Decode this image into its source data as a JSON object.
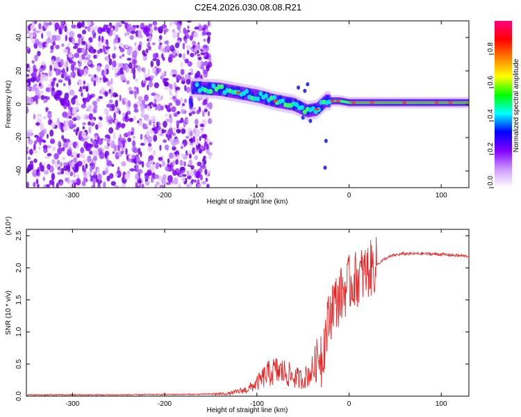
{
  "title": "C2E4.2026.030.08.08.R21",
  "chart_data": [
    {
      "type": "heatmap",
      "name": "spectrogram",
      "xlabel": "Height of straight line (km)",
      "ylabel": "Frequency (Hz)",
      "xlim": [
        -350,
        130
      ],
      "ylim": [
        -50,
        50
      ],
      "xticks": [
        -300,
        -200,
        -100,
        0,
        100
      ],
      "yticks": [
        -40,
        -20,
        0,
        20,
        40
      ],
      "noise_region_x": [
        -350,
        -150
      ],
      "signal_track": [
        {
          "x": -170,
          "y": 10
        },
        {
          "x": -140,
          "y": 9
        },
        {
          "x": -120,
          "y": 7
        },
        {
          "x": -100,
          "y": 5
        },
        {
          "x": -80,
          "y": 2
        },
        {
          "x": -60,
          "y": 0
        },
        {
          "x": -45,
          "y": -4
        },
        {
          "x": -35,
          "y": -3
        },
        {
          "x": -25,
          "y": 2
        },
        {
          "x": -10,
          "y": 2
        },
        {
          "x": 0,
          "y": 1
        },
        {
          "x": 50,
          "y": 1
        },
        {
          "x": 100,
          "y": 1
        },
        {
          "x": 130,
          "y": 1
        }
      ],
      "colorbar": {
        "label": "Normalized spectral amplitude",
        "range": [
          0,
          1
        ],
        "ticks": [
          "0.0",
          "0.2",
          "0.4",
          "0.6",
          "0.8"
        ],
        "colors": [
          "#ffffff",
          "#cc99ff",
          "#8000ff",
          "#0000ff",
          "#00ffff",
          "#00ff00",
          "#ffff00",
          "#ff8000",
          "#ff0000",
          "#ff0080"
        ]
      }
    },
    {
      "type": "line",
      "name": "snr",
      "xlabel": "Height of straight line (km)",
      "ylabel": "SNR (10 * v/v)",
      "scale_label": "(x10⁴)",
      "xlim": [
        -350,
        130
      ],
      "ylim": [
        0,
        2.6
      ],
      "xticks": [
        -300,
        -200,
        -100,
        0,
        100
      ],
      "yticks": [
        "0.0",
        "0.5",
        "1.0",
        "1.5",
        "2.0",
        "2.5"
      ],
      "color": "#ee2222",
      "x": [
        -350,
        -250,
        -160,
        -130,
        -110,
        -100,
        -90,
        -80,
        -70,
        -60,
        -50,
        -40,
        -30,
        -25,
        -20,
        -17,
        -15,
        -10,
        -5,
        0,
        10,
        20,
        30,
        40,
        50,
        60,
        80,
        100,
        120,
        130
      ],
      "y": [
        0.01,
        0.01,
        0.02,
        0.03,
        0.08,
        0.15,
        0.25,
        0.3,
        0.28,
        0.22,
        0.2,
        0.3,
        0.55,
        1.0,
        1.3,
        1.5,
        1.45,
        1.55,
        1.65,
        1.75,
        1.85,
        1.95,
        2.05,
        2.15,
        2.2,
        2.22,
        2.22,
        2.21,
        2.19,
        2.18
      ]
    }
  ]
}
